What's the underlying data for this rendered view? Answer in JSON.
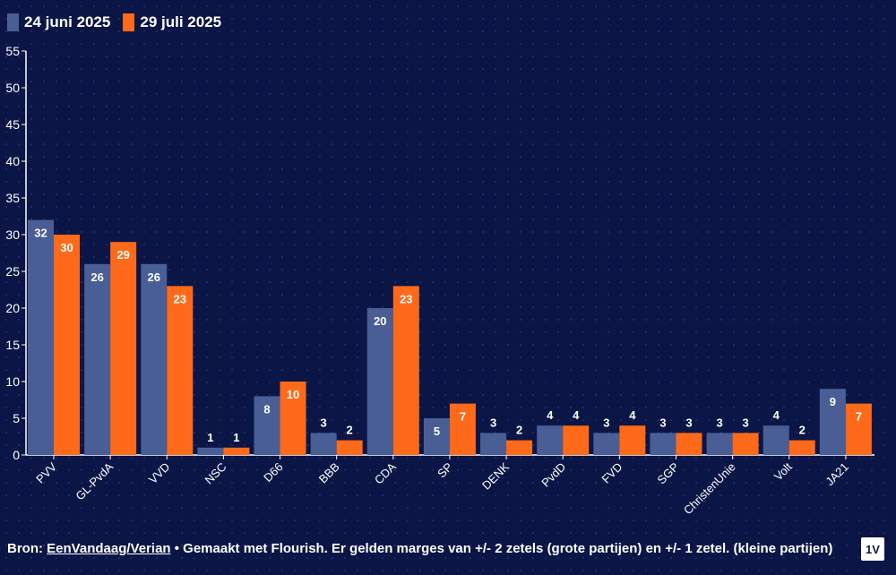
{
  "chart_data": {
    "type": "bar",
    "categories": [
      "PVV",
      "GL-PvdA",
      "VVD",
      "NSC",
      "D66",
      "BBB",
      "CDA",
      "SP",
      "DENK",
      "PvdD",
      "FVD",
      "SGP",
      "ChristenUnie",
      "Volt",
      "JA21"
    ],
    "series": [
      {
        "name": "24 juni 2025",
        "color": "#4a5e96",
        "values": [
          32,
          26,
          26,
          1,
          8,
          3,
          20,
          5,
          3,
          4,
          3,
          3,
          3,
          4,
          9
        ]
      },
      {
        "name": "29 juli 2025",
        "color": "#ff6a1a",
        "values": [
          30,
          29,
          23,
          1,
          10,
          2,
          23,
          7,
          2,
          4,
          4,
          3,
          3,
          2,
          7
        ]
      }
    ],
    "ylim": [
      0,
      55
    ],
    "yticks": [
      0,
      5,
      10,
      15,
      20,
      25,
      30,
      35,
      40,
      45,
      50,
      55
    ],
    "legend_position": "top-left",
    "grid": false
  },
  "footer": {
    "prefix": "Bron: ",
    "link": "EenVandaag/Verian",
    "suffix": " • Gemaakt met Flourish. Er gelden marges van +/- 2 zetels (grote partijen) en +/- 1 zetel. (kleine partijen)"
  },
  "logo_text": "1V"
}
